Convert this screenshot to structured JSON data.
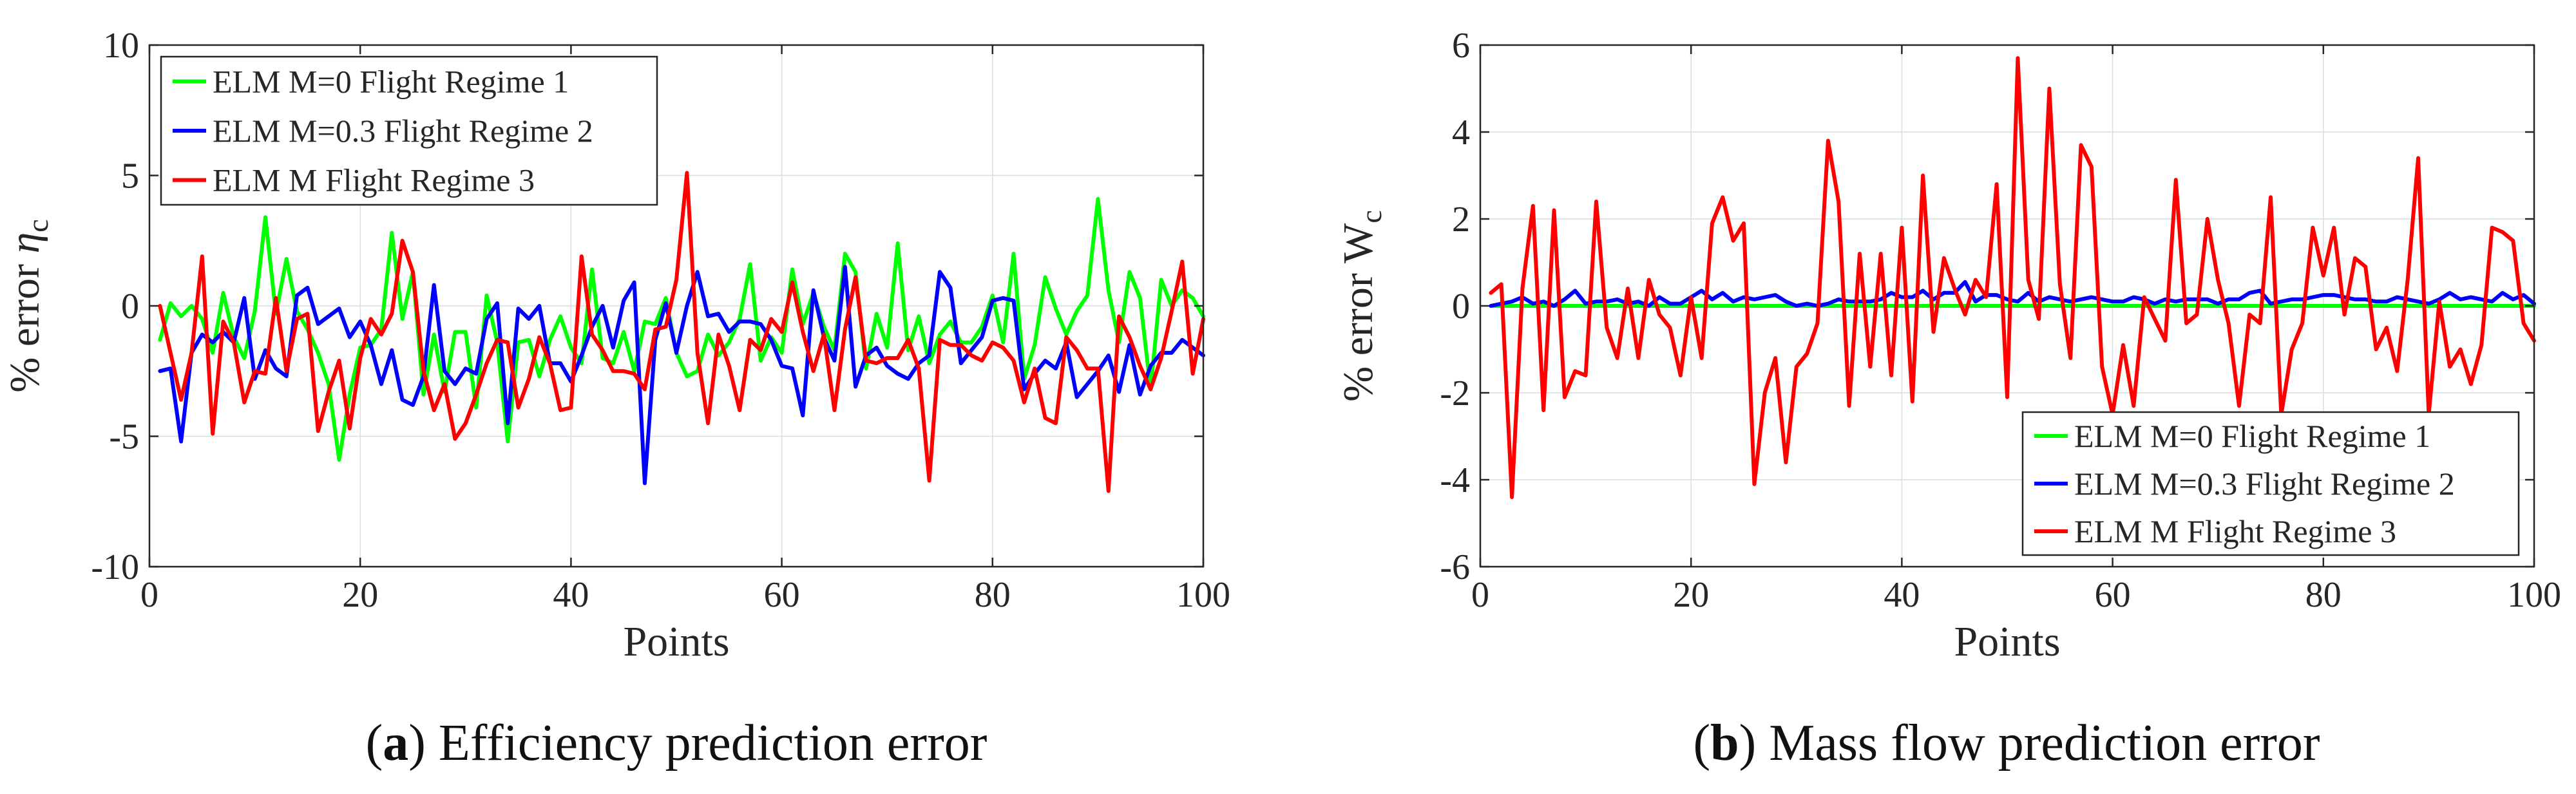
{
  "colors": {
    "green": "#00ff00",
    "blue": "#0000ff",
    "red": "#ff0000",
    "axis": "#262626",
    "grid": "#dcdcdc"
  },
  "chart_data": [
    {
      "type": "line",
      "panel": "a",
      "caption_letter": "a",
      "caption_text": " Efficiency prediction error",
      "xlabel": "Points",
      "ylabel_main": "% error ",
      "ylabel_symbol": "η",
      "ylabel_sub": "c",
      "xlim": [
        0,
        100
      ],
      "ylim": [
        -10,
        10
      ],
      "xticks": [
        0,
        20,
        40,
        60,
        80,
        100
      ],
      "yticks": [
        -10,
        -5,
        0,
        5,
        10
      ],
      "grid": true,
      "legend_position": "top-left",
      "x": [
        1,
        2,
        3,
        4,
        5,
        6,
        7,
        8,
        9,
        10,
        11,
        12,
        13,
        14,
        15,
        16,
        17,
        18,
        19,
        20,
        21,
        22,
        23,
        24,
        25,
        26,
        27,
        28,
        29,
        30,
        31,
        32,
        33,
        34,
        35,
        36,
        37,
        38,
        39,
        40,
        41,
        42,
        43,
        44,
        45,
        46,
        47,
        48,
        49,
        50,
        51,
        52,
        53,
        54,
        55,
        56,
        57,
        58,
        59,
        60,
        61,
        62,
        63,
        64,
        65,
        66,
        67,
        68,
        69,
        70,
        71,
        72,
        73,
        74,
        75,
        76,
        77,
        78,
        79,
        80,
        81,
        82,
        83,
        84,
        85,
        86,
        87,
        88,
        89,
        90,
        91,
        92,
        93,
        94,
        95,
        96,
        97,
        98,
        99,
        100
      ],
      "series": [
        {
          "name": "ELM M=0 Flight Regime 1",
          "color": "#00ff00",
          "values": [
            -1.3,
            0.1,
            -0.4,
            0.0,
            -0.5,
            -1.8,
            0.5,
            -1.2,
            -2.0,
            -0.2,
            3.4,
            -0.3,
            1.8,
            -0.2,
            -0.9,
            -1.8,
            -3.0,
            -5.9,
            -3.4,
            -1.6,
            -1.5,
            -0.9,
            2.8,
            -0.5,
            1.3,
            -3.4,
            -1.1,
            -3.3,
            -1.0,
            -1.0,
            -3.9,
            0.4,
            -1.4,
            -5.2,
            -1.4,
            -1.3,
            -2.7,
            -1.3,
            -0.4,
            -1.6,
            -2.2,
            1.4,
            -2.0,
            -2.2,
            -1.0,
            -2.5,
            -0.6,
            -0.7,
            0.3,
            -1.8,
            -2.7,
            -2.5,
            -1.1,
            -1.9,
            -1.4,
            -0.5,
            1.6,
            -2.1,
            -1.2,
            -1.8,
            1.4,
            -0.7,
            0.5,
            -0.8,
            -1.7,
            2.0,
            1.3,
            -2.4,
            -0.3,
            -1.6,
            2.4,
            -1.7,
            -0.4,
            -2.2,
            -1.1,
            -0.6,
            -1.4,
            -1.4,
            -0.8,
            0.4,
            -1.4,
            2.0,
            -2.8,
            -1.5,
            1.1,
            -0.1,
            -1.1,
            -0.2,
            0.4,
            4.1,
            0.6,
            -1.4,
            1.3,
            0.3,
            -3.2,
            1.0,
            0.0,
            0.6,
            0.3,
            -0.4
          ]
        },
        {
          "name": "ELM M=0.3 Flight Regime 2",
          "color": "#0000ff",
          "values": [
            -2.5,
            -2.4,
            -5.2,
            -1.8,
            -1.1,
            -1.4,
            -1.0,
            -1.4,
            0.3,
            -2.8,
            -1.7,
            -2.4,
            -2.7,
            0.4,
            0.7,
            -0.7,
            -0.4,
            -0.1,
            -1.2,
            -0.6,
            -1.5,
            -3.0,
            -1.7,
            -3.6,
            -3.8,
            -2.7,
            0.8,
            -2.5,
            -3.0,
            -2.4,
            -2.6,
            -0.5,
            0.1,
            -4.5,
            -0.1,
            -0.5,
            0.0,
            -2.2,
            -2.2,
            -2.9,
            -1.9,
            -0.8,
            0.0,
            -1.6,
            0.2,
            0.9,
            -6.8,
            -1.3,
            0.1,
            -1.8,
            0.0,
            1.3,
            -0.4,
            -0.3,
            -1.0,
            -0.6,
            -0.6,
            -0.7,
            -1.3,
            -2.3,
            -2.4,
            -4.2,
            0.6,
            -1.2,
            -2.1,
            1.5,
            -3.1,
            -1.9,
            -1.6,
            -2.3,
            -2.6,
            -2.8,
            -2.2,
            -1.9,
            1.3,
            0.7,
            -2.2,
            -1.7,
            -1.2,
            0.2,
            0.3,
            0.2,
            -3.2,
            -2.6,
            -2.1,
            -2.4,
            -1.4,
            -3.5,
            -3.0,
            -2.5,
            -1.9,
            -3.3,
            -1.5,
            -3.4,
            -2.3,
            -1.8,
            -1.8,
            -1.3,
            -1.6,
            -1.9
          ]
        },
        {
          "name": "ELM M Flight Regime 3",
          "color": "#ff0000",
          "values": [
            0.0,
            -1.8,
            -3.6,
            -1.8,
            1.9,
            -4.9,
            -0.6,
            -1.4,
            -3.7,
            -2.5,
            -2.6,
            0.3,
            -2.5,
            -0.5,
            -0.3,
            -4.8,
            -3.3,
            -2.1,
            -4.7,
            -2.0,
            -0.5,
            -1.1,
            -0.3,
            2.5,
            1.3,
            -2.5,
            -4.0,
            -3.0,
            -5.1,
            -4.5,
            -3.4,
            -2.2,
            -1.3,
            -1.4,
            -3.9,
            -2.8,
            -1.2,
            -2.2,
            -4.0,
            -3.9,
            1.9,
            -1.1,
            -1.7,
            -2.5,
            -2.5,
            -2.6,
            -3.2,
            -0.9,
            -0.8,
            1.0,
            5.1,
            -1.8,
            -4.5,
            -1.1,
            -2.3,
            -4.0,
            -1.3,
            -1.7,
            -0.5,
            -1.0,
            0.9,
            -1.0,
            -2.5,
            -1.1,
            -4.0,
            -0.9,
            1.1,
            -2.1,
            -2.2,
            -2.0,
            -2.0,
            -1.3,
            -2.4,
            -6.7,
            -1.3,
            -1.5,
            -1.5,
            -1.9,
            -2.1,
            -1.4,
            -1.6,
            -2.1,
            -3.7,
            -2.4,
            -4.3,
            -4.5,
            -1.2,
            -1.7,
            -2.4,
            -2.4,
            -7.1,
            -0.4,
            -1.2,
            -2.3,
            -3.2,
            -2.0,
            -0.2,
            1.7,
            -2.6,
            -0.5
          ]
        }
      ]
    },
    {
      "type": "line",
      "panel": "b",
      "caption_letter": "b",
      "caption_text": " Mass flow prediction error",
      "xlabel": "Points",
      "ylabel_main": "% error W",
      "ylabel_symbol": "",
      "ylabel_sub": "c",
      "xlim": [
        0,
        100
      ],
      "ylim": [
        -6,
        6
      ],
      "xticks": [
        0,
        20,
        40,
        60,
        80,
        100
      ],
      "yticks": [
        -6,
        -4,
        -2,
        0,
        2,
        4,
        6
      ],
      "grid": true,
      "legend_position": "bottom-right",
      "x": [
        1,
        2,
        3,
        4,
        5,
        6,
        7,
        8,
        9,
        10,
        11,
        12,
        13,
        14,
        15,
        16,
        17,
        18,
        19,
        20,
        21,
        22,
        23,
        24,
        25,
        26,
        27,
        28,
        29,
        30,
        31,
        32,
        33,
        34,
        35,
        36,
        37,
        38,
        39,
        40,
        41,
        42,
        43,
        44,
        45,
        46,
        47,
        48,
        49,
        50,
        51,
        52,
        53,
        54,
        55,
        56,
        57,
        58,
        59,
        60,
        61,
        62,
        63,
        64,
        65,
        66,
        67,
        68,
        69,
        70,
        71,
        72,
        73,
        74,
        75,
        76,
        77,
        78,
        79,
        80,
        81,
        82,
        83,
        84,
        85,
        86,
        87,
        88,
        89,
        90,
        91,
        92,
        93,
        94,
        95,
        96,
        97,
        98,
        99,
        100
      ],
      "series": [
        {
          "name": "ELM M=0 Flight Regime 1",
          "color": "#00ff00",
          "values": [
            0.0,
            0.0,
            0.0,
            0.0,
            0.0,
            0.0,
            0.0,
            0.0,
            0.0,
            0.0,
            0.0,
            0.0,
            0.0,
            0.0,
            0.0,
            0.0,
            0.0,
            0.0,
            0.0,
            0.0,
            0.0,
            0.0,
            0.0,
            0.0,
            0.0,
            0.0,
            0.0,
            0.0,
            0.0,
            0.0,
            0.0,
            0.0,
            0.0,
            0.0,
            0.0,
            0.0,
            0.0,
            0.0,
            0.0,
            0.0,
            0.0,
            0.0,
            0.0,
            0.0,
            0.0,
            0.0,
            0.0,
            0.0,
            0.0,
            0.0,
            0.0,
            0.0,
            0.0,
            0.0,
            0.0,
            0.0,
            0.0,
            0.0,
            0.0,
            0.0,
            0.0,
            0.0,
            0.0,
            0.0,
            0.0,
            0.0,
            0.0,
            0.0,
            0.0,
            0.0,
            0.0,
            0.0,
            0.0,
            0.0,
            0.0,
            0.0,
            0.0,
            0.0,
            0.0,
            0.0,
            0.0,
            0.0,
            0.0,
            0.0,
            0.0,
            0.0,
            0.0,
            0.0,
            0.0,
            0.0,
            0.0,
            0.0,
            0.0,
            0.0,
            0.0,
            0.0,
            0.0,
            0.0,
            0.0,
            0.0
          ]
        },
        {
          "name": "ELM M=0.3 Flight Regime 2",
          "color": "#0000ff",
          "values": [
            0.0,
            0.05,
            0.1,
            0.2,
            0.05,
            0.1,
            0.0,
            0.15,
            0.35,
            0.05,
            0.1,
            0.1,
            0.15,
            0.05,
            0.1,
            0.0,
            0.2,
            0.05,
            0.05,
            0.2,
            0.35,
            0.15,
            0.3,
            0.1,
            0.2,
            0.15,
            0.2,
            0.25,
            0.1,
            0.0,
            0.05,
            0.0,
            0.05,
            0.15,
            0.1,
            0.1,
            0.1,
            0.15,
            0.3,
            0.2,
            0.2,
            0.35,
            0.15,
            0.3,
            0.3,
            0.55,
            0.1,
            0.25,
            0.25,
            0.15,
            0.1,
            0.3,
            0.1,
            0.2,
            0.15,
            0.1,
            0.15,
            0.2,
            0.15,
            0.1,
            0.1,
            0.2,
            0.15,
            0.05,
            0.15,
            0.1,
            0.15,
            0.15,
            0.15,
            0.05,
            0.15,
            0.15,
            0.3,
            0.35,
            0.05,
            0.1,
            0.15,
            0.15,
            0.2,
            0.25,
            0.25,
            0.2,
            0.15,
            0.15,
            0.1,
            0.1,
            0.2,
            0.15,
            0.1,
            0.05,
            0.15,
            0.3,
            0.15,
            0.2,
            0.15,
            0.1,
            0.3,
            0.15,
            0.25,
            0.05
          ]
        },
        {
          "name": "ELM M Flight Regime 3",
          "color": "#ff0000",
          "values": [
            0.3,
            0.5,
            -4.4,
            0.4,
            2.3,
            -2.4,
            2.2,
            -2.1,
            -1.5,
            -1.6,
            2.4,
            -0.5,
            -1.2,
            0.4,
            -1.2,
            0.6,
            -0.2,
            -0.5,
            -1.6,
            0.2,
            -1.2,
            1.9,
            2.5,
            1.5,
            1.9,
            -4.1,
            -2.0,
            -1.2,
            -3.6,
            -1.4,
            -1.1,
            -0.4,
            3.8,
            2.4,
            -2.3,
            1.2,
            -1.4,
            1.2,
            -1.6,
            1.8,
            -2.2,
            3.0,
            -0.6,
            1.1,
            0.4,
            -0.2,
            0.6,
            0.2,
            2.8,
            -2.1,
            5.7,
            0.6,
            -0.3,
            5.0,
            0.5,
            -1.2,
            3.7,
            3.2,
            -1.4,
            -2.5,
            -0.9,
            -2.3,
            0.2,
            -0.3,
            -0.8,
            2.9,
            -0.4,
            -0.2,
            2.0,
            0.6,
            -0.4,
            -2.3,
            -0.2,
            -0.4,
            2.5,
            -2.5,
            -1.0,
            -0.4,
            1.8,
            0.7,
            1.8,
            -0.2,
            1.1,
            0.9,
            -1.0,
            -0.5,
            -1.5,
            0.6,
            3.4,
            -2.5,
            0.1,
            -1.4,
            -1.0,
            -1.8,
            -0.9,
            1.8,
            1.7,
            1.5,
            -0.4,
            -0.8
          ]
        }
      ]
    }
  ]
}
